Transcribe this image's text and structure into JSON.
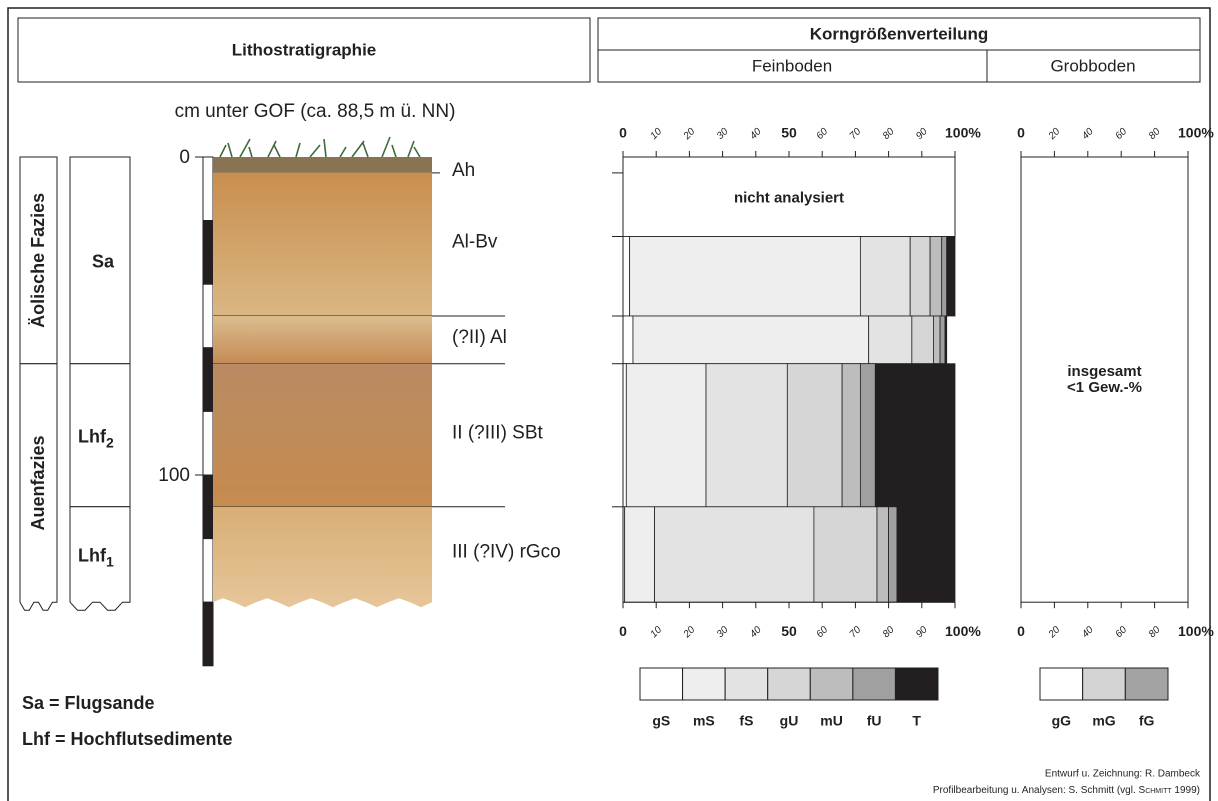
{
  "header": {
    "litho": "Lithostratigraphie",
    "grain": "Korngrößenverteilung",
    "fine": "Feinboden",
    "coarse": "Grobboden"
  },
  "depth_axis": {
    "label": "cm unter GOF (ca. 88,5 m ü. NN)",
    "lim": [
      0,
      160
    ],
    "ticks": [
      0,
      100
    ]
  },
  "horizons": [
    {
      "name": "Ah",
      "top": 0,
      "bottom": 5,
      "colors": [
        "#8a7352",
        "#8a7352"
      ]
    },
    {
      "name": "Al-Bv",
      "top": 5,
      "bottom": 50,
      "colors": [
        "#c98e4e",
        "#dab784"
      ]
    },
    {
      "name": "(?II) Al",
      "top": 50,
      "bottom": 65,
      "colors": [
        "#dcbd8e",
        "#c48b55"
      ]
    },
    {
      "name": "II (?III) SBt",
      "top": 65,
      "bottom": 110,
      "colors": [
        "#b98b63",
        "#c68b4e"
      ]
    },
    {
      "name": "III (?IV) rGco",
      "top": 110,
      "bottom": 140,
      "colors": [
        "#d8ae74",
        "#e6c69a"
      ]
    }
  ],
  "facies": [
    {
      "label": "Äolische Fazies",
      "top": 0,
      "bottom": 65
    },
    {
      "label": "Auenfazies",
      "top": 65,
      "bottom": 140
    }
  ],
  "units": [
    {
      "label": "Sa",
      "top": 0,
      "bottom": 65
    },
    {
      "label": "Lhf",
      "sub": "2",
      "top": 65,
      "bottom": 110
    },
    {
      "label": "Lhf",
      "sub": "1",
      "top": 110,
      "bottom": 140
    }
  ],
  "key": [
    "Sa = Flugsande",
    "Lhf = Hochflutsedimente"
  ],
  "fine": {
    "xlim": [
      0,
      100
    ],
    "xticks": [
      0,
      10,
      20,
      30,
      40,
      50,
      60,
      70,
      80,
      90,
      {
        "value": 100,
        "label": "100%"
      }
    ],
    "not_analyzed": {
      "label": "nicht analysiert",
      "top": 0,
      "bottom": 25
    },
    "classes": [
      {
        "name": "gS",
        "color": "#ffffff"
      },
      {
        "name": "mS",
        "color": "#eeeeee"
      },
      {
        "name": "fS",
        "color": "#e3e3e3"
      },
      {
        "name": "gU",
        "color": "#d6d6d6"
      },
      {
        "name": "mU",
        "color": "#bdbdbd"
      },
      {
        "name": "fU",
        "color": "#a0a0a0"
      },
      {
        "name": "T",
        "color": "#231f20"
      }
    ],
    "rows": [
      {
        "top": 25,
        "bottom": 50,
        "values": [
          2,
          69.5,
          15,
          6,
          3.5,
          1.5,
          2.5
        ]
      },
      {
        "top": 50,
        "bottom": 65,
        "values": [
          3,
          71,
          13,
          6.5,
          2,
          1.5,
          0.5
        ]
      },
      {
        "top": 65,
        "bottom": 110,
        "values": [
          1,
          24,
          24.5,
          16.5,
          5.5,
          4.5,
          24
        ]
      },
      {
        "top": 110,
        "bottom": 140,
        "values": [
          0.5,
          9,
          48,
          19,
          3.5,
          2.5,
          17.5
        ]
      }
    ]
  },
  "coarse": {
    "xlim": [
      0,
      100
    ],
    "xticks": [
      0,
      20,
      40,
      60,
      80,
      {
        "value": 100,
        "label": "100%"
      }
    ],
    "note": [
      "insgesamt",
      "<1 Gew.-%"
    ],
    "classes": [
      {
        "name": "gG",
        "color": "#ffffff"
      },
      {
        "name": "mG",
        "color": "#d4d4d4"
      },
      {
        "name": "fG",
        "color": "#a3a3a3"
      }
    ]
  },
  "credits": [
    "Entwurf u. Zeichnung: R. Dambeck",
    [
      "Profilbearbeitung u. Analysen: S. Schmitt (vgl. ",
      "Schmitt",
      " 1999)"
    ]
  ]
}
